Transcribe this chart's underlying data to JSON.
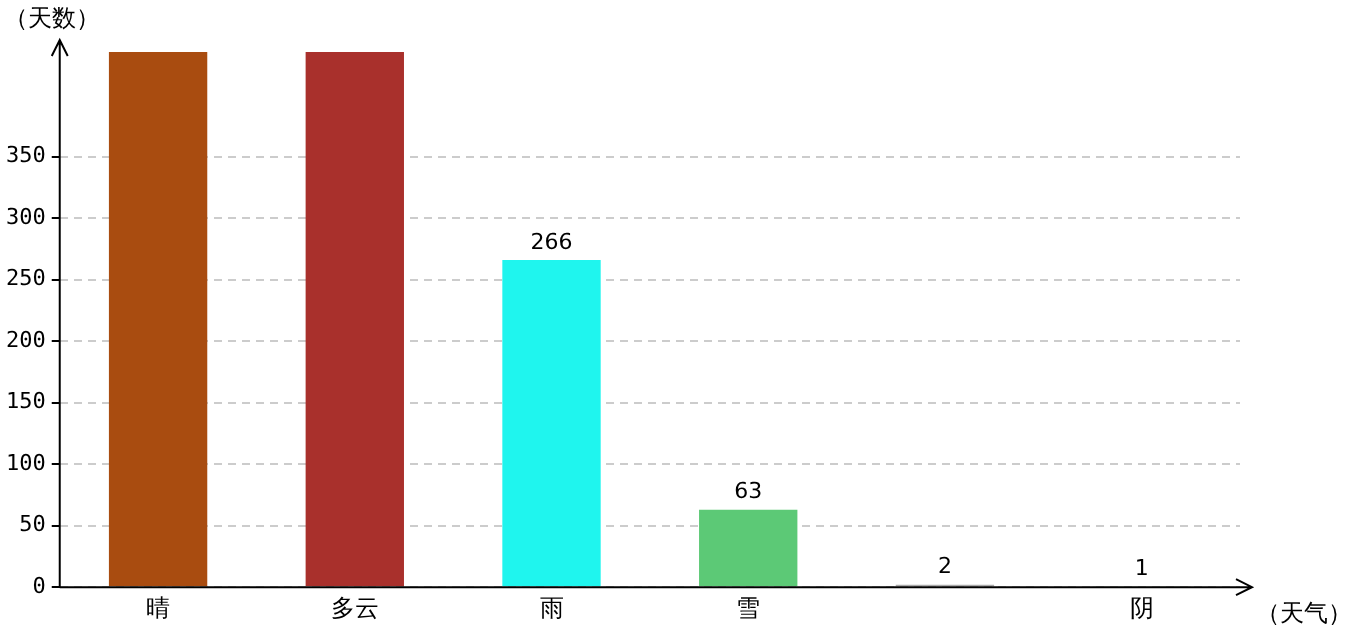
{
  "chart_data": {
    "type": "bar",
    "xlabel": "（天气）",
    "ylabel": "（天数）",
    "categories": [
      "晴",
      "多云",
      "雨",
      "雪",
      null,
      "阴"
    ],
    "values": [
      435,
      435,
      266,
      63,
      2,
      1
    ],
    "colors": [
      "#a94c10",
      "#a9302c",
      "#1ff5ee",
      "#5cc976",
      "#aaaaaa",
      "#8fa58f"
    ],
    "value_labels": [
      null,
      null,
      "266",
      "63",
      "2",
      "1"
    ],
    "ylim": [
      0,
      435
    ],
    "yticks": [
      0,
      50,
      100,
      150,
      200,
      250,
      300,
      350
    ],
    "grid": "y",
    "legend": false
  }
}
